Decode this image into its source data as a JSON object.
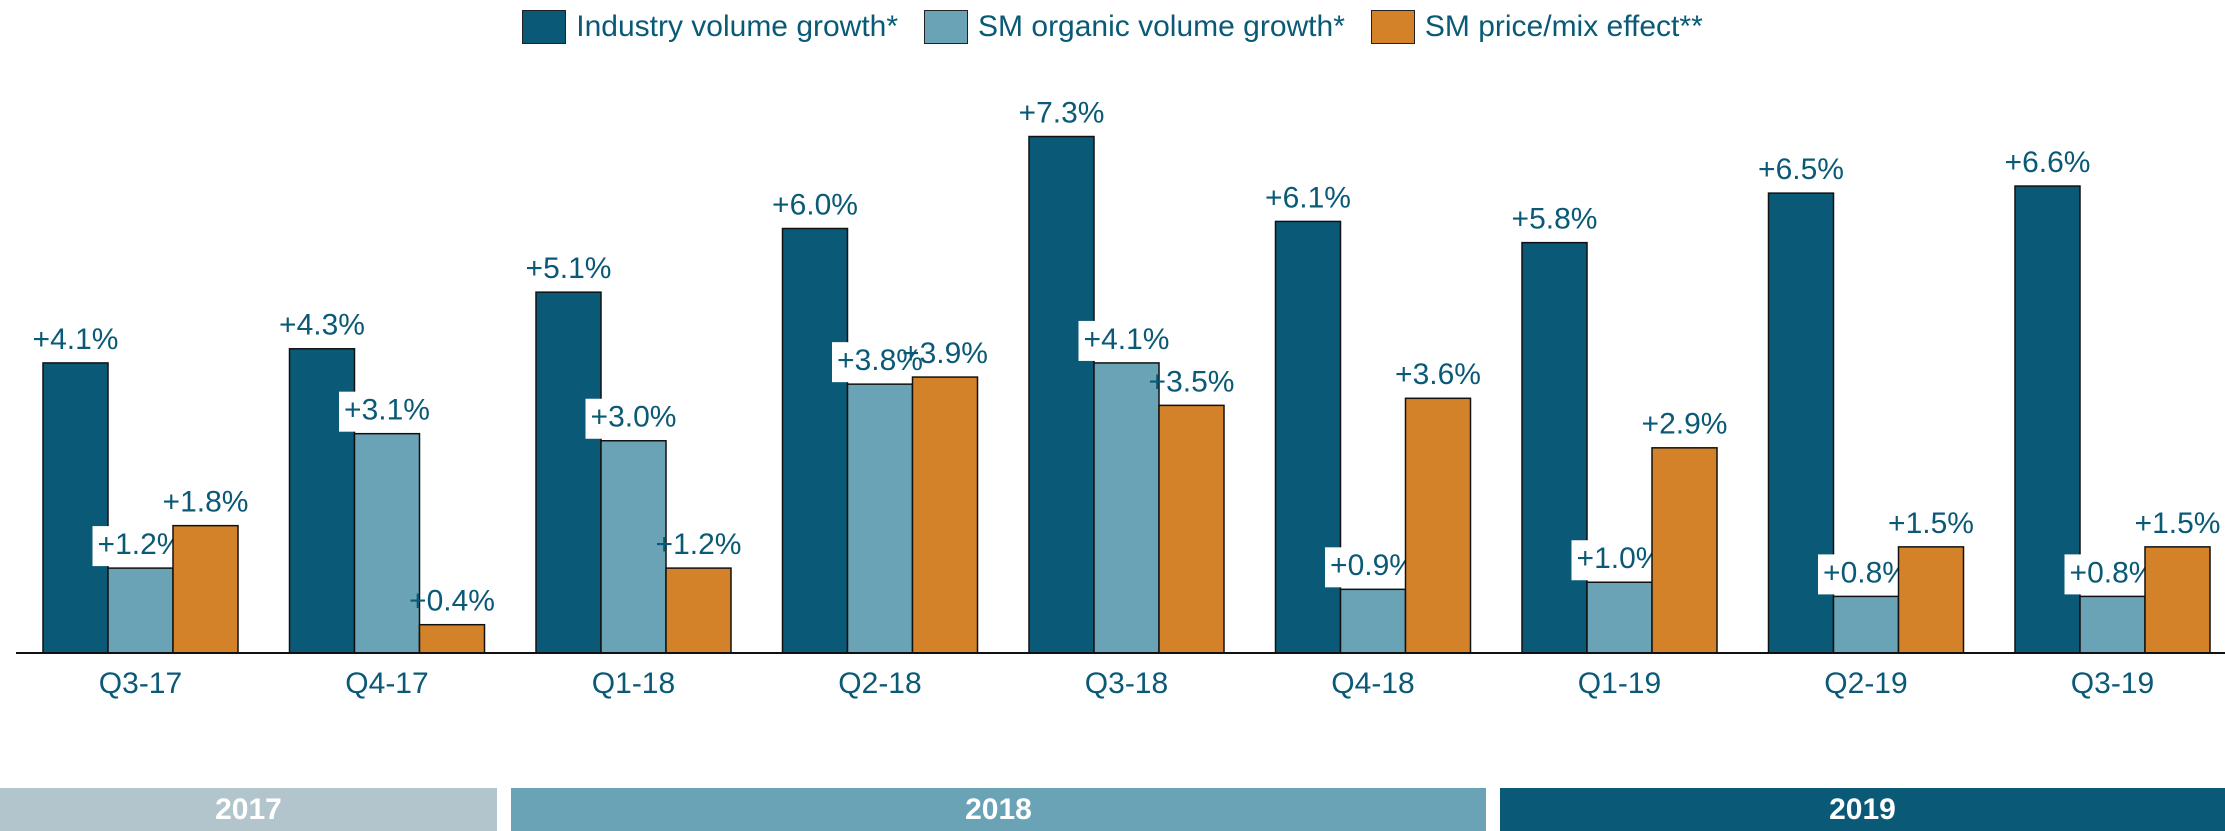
{
  "chart_data": {
    "type": "bar",
    "categories": [
      "Q3-17",
      "Q4-17",
      "Q1-18",
      "Q2-18",
      "Q3-18",
      "Q4-18",
      "Q1-19",
      "Q2-19",
      "Q3-19"
    ],
    "series": [
      {
        "name": "Industry volume growth*",
        "color": "#0a5a77",
        "values": [
          4.1,
          4.3,
          5.1,
          6.0,
          7.3,
          6.1,
          5.8,
          6.5,
          6.6
        ],
        "value_labels": [
          "+4.1%",
          "+4.3%",
          "+5.1%",
          "+6.0%",
          "+7.3%",
          "+6.1%",
          "+5.8%",
          "+6.5%",
          "+6.6%"
        ]
      },
      {
        "name": "SM organic volume growth*",
        "color": "#6aa3b5",
        "values": [
          1.2,
          3.1,
          3.0,
          3.8,
          4.1,
          0.9,
          1.0,
          0.8,
          0.8
        ],
        "value_labels": [
          "+1.2%",
          "+3.1%",
          "+3.0%",
          "+3.8%",
          "+4.1%",
          "+0.9%",
          "+1.0%",
          "+0.8%",
          "+0.8%"
        ]
      },
      {
        "name": "SM price/mix effect**",
        "color": "#d4822a",
        "values": [
          1.8,
          0.4,
          1.2,
          3.9,
          3.5,
          3.6,
          2.9,
          1.5,
          1.5
        ],
        "value_labels": [
          "+1.8%",
          "+0.4%",
          "+1.2%",
          "+3.9%",
          "+3.5%",
          "+3.6%",
          "+2.9%",
          "+1.5%",
          "+1.5%"
        ]
      }
    ],
    "ylim": [
      0,
      8
    ],
    "periods": [
      "2017",
      "2018",
      "2019"
    ]
  }
}
